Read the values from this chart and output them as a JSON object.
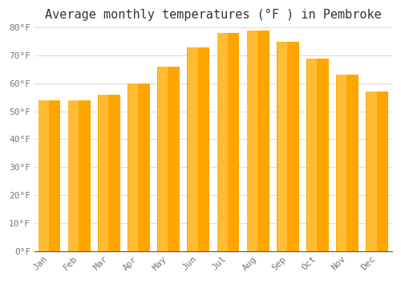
{
  "title": "Average monthly temperatures (°F ) in Pembroke",
  "months": [
    "Jan",
    "Feb",
    "Mar",
    "Apr",
    "May",
    "Jun",
    "Jul",
    "Aug",
    "Sep",
    "Oct",
    "Nov",
    "Dec"
  ],
  "values": [
    54,
    54,
    56,
    60,
    66,
    73,
    78,
    79,
    75,
    69,
    63,
    57
  ],
  "bar_color_main": "#FFA500",
  "bar_color_light": "#FFD060",
  "ylim": [
    0,
    80
  ],
  "yticks": [
    0,
    10,
    20,
    30,
    40,
    50,
    60,
    70,
    80
  ],
  "ytick_labels": [
    "0°F",
    "10°F",
    "20°F",
    "30°F",
    "40°F",
    "50°F",
    "60°F",
    "70°F",
    "80°F"
  ],
  "background_color": "#ffffff",
  "plot_bg_color": "#ffffff",
  "grid_color": "#dddddd",
  "title_fontsize": 11,
  "tick_fontsize": 8,
  "font_color": "#777777",
  "title_color": "#333333"
}
